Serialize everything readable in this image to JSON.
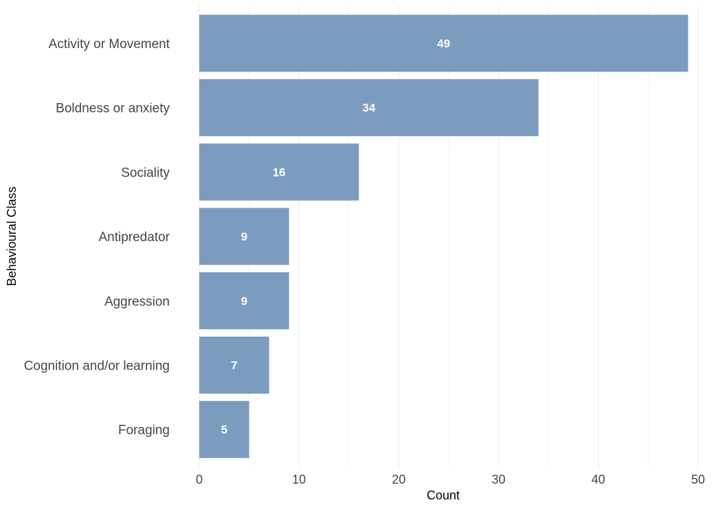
{
  "chart_data": {
    "type": "bar",
    "orientation": "horizontal",
    "categories": [
      "Activity or Movement",
      "Boldness or anxiety",
      "Sociality",
      "Antipredator",
      "Aggression",
      "Cognition and/or learning",
      "Foraging"
    ],
    "values": [
      49,
      34,
      16,
      9,
      9,
      7,
      5
    ],
    "xlabel": "Count",
    "ylabel": "Behavioural Class",
    "xlim": [
      0,
      50
    ],
    "xticks": [
      0,
      10,
      20,
      30,
      40,
      50
    ],
    "grid": "vertical",
    "data_labels": true,
    "colors": {
      "bar": "#7b9bbf",
      "grid": "#ebebeb",
      "bar_label": "#ffffff"
    }
  }
}
